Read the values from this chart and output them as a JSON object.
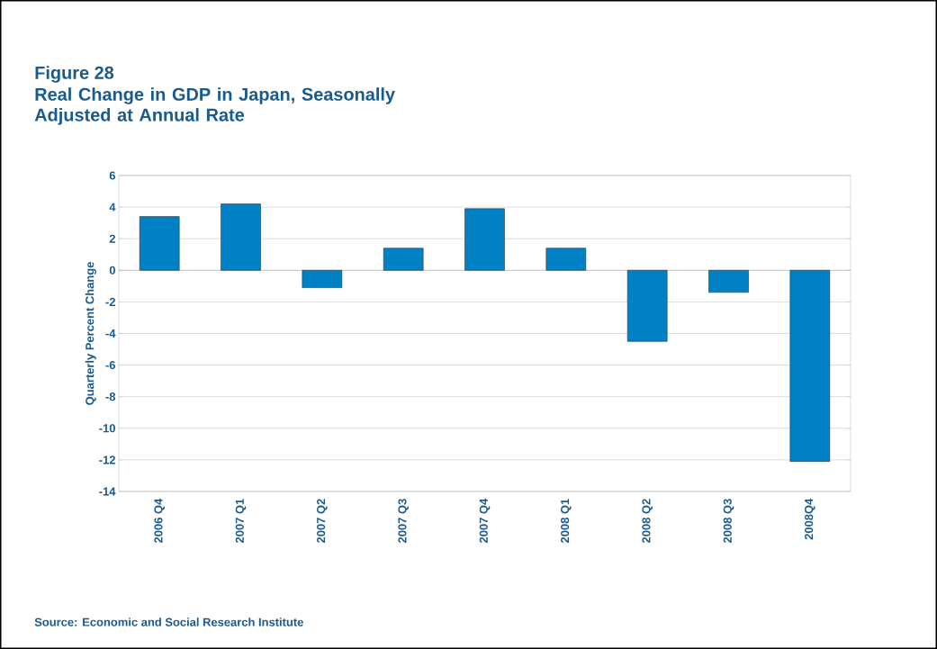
{
  "chart_data": {
    "type": "bar",
    "title": "Figure 28",
    "subtitle": "Real Change in GDP in Japan, Seasonally Adjusted at Annual Rate",
    "ylabel": "Quarterly Percent Change",
    "categories": [
      "2006 Q4",
      "2007 Q1",
      "2007 Q2",
      "2007 Q3",
      "2007 Q4",
      "2008 Q1",
      "2008 Q2",
      "2008 Q3",
      "2008Q4"
    ],
    "values": [
      3.4,
      4.2,
      -1.1,
      1.4,
      3.9,
      1.4,
      -4.5,
      -1.4,
      -12.1
    ],
    "color": "#0081c6",
    "ylim": [
      -14,
      6
    ],
    "yticks": [
      -14,
      -12,
      -10,
      -8,
      -6,
      -4,
      -2,
      0,
      2,
      4,
      6
    ],
    "grid": "y",
    "annotations": [
      "Source: Economic and Social Research Institute"
    ]
  }
}
